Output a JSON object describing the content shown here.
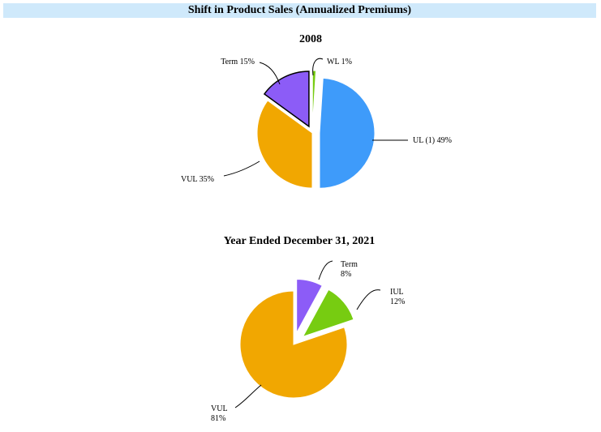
{
  "banner": {
    "title": "Shift in Product Sales (Annualized Premiums)"
  },
  "colors": {
    "UL": "#3e9bfa",
    "VUL": "#f1a701",
    "Term": "#8c5cf7",
    "WL": "#77cc11",
    "IUL": "#77cc11",
    "banner_bg": "#cfe9fb"
  },
  "chart_data": [
    {
      "type": "pie",
      "title": "2008",
      "slices": [
        {
          "label": "WL",
          "value": 1,
          "label_lines": [
            "WL 1%"
          ],
          "exploded": true
        },
        {
          "label": "UL (1)",
          "value": 49,
          "label_lines": [
            "UL (1) 49%"
          ],
          "exploded": true
        },
        {
          "label": "VUL",
          "value": 35,
          "label_lines": [
            "VUL 35%"
          ],
          "exploded": false
        },
        {
          "label": "Term",
          "value": 15,
          "label_lines": [
            "Term 15%"
          ],
          "exploded": true
        }
      ]
    },
    {
      "type": "pie",
      "title": "Year Ended December 31, 2021",
      "slices": [
        {
          "label": "Term",
          "value": 8,
          "label_lines": [
            "Term",
            "8%"
          ],
          "exploded": true
        },
        {
          "label": "IUL",
          "value": 12,
          "label_lines": [
            "IUL",
            "12%"
          ],
          "exploded": true
        },
        {
          "label": "VUL",
          "value": 81,
          "label_lines": [
            "VUL",
            "81%"
          ],
          "exploded": false
        }
      ]
    }
  ]
}
